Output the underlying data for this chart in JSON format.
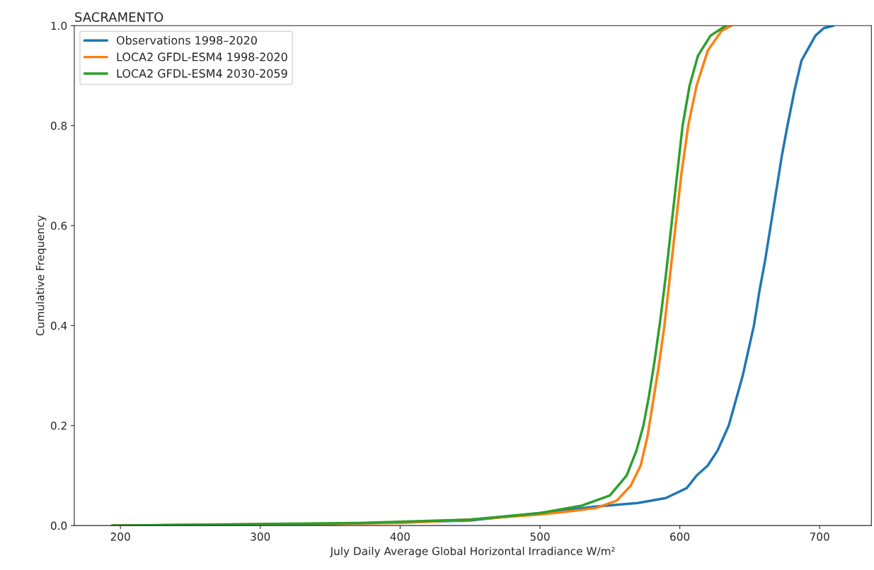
{
  "chart_data": {
    "type": "line",
    "title": "SACRAMENTO",
    "xlabel": "July Daily Average Global Horizontal Irradiance W/m²",
    "ylabel": "Cumulative Frequency",
    "xlim": [
      167,
      737
    ],
    "ylim": [
      0,
      1
    ],
    "xticks": [
      200,
      300,
      400,
      500,
      600,
      700
    ],
    "yticks": [
      {
        "value": 0,
        "label": "0.0"
      },
      0.2,
      0.4,
      0.6,
      0.8,
      {
        "value": 1,
        "label": "1.0"
      }
    ],
    "legend": "top left",
    "grid": false,
    "series": [
      {
        "name": "Observations 1998–2020",
        "color": "#1f77b4",
        "x": [
          194,
          350,
          450,
          500,
          540,
          570,
          590,
          605,
          612,
          620,
          627,
          635,
          640,
          645,
          649,
          653,
          657,
          661,
          665,
          669,
          673,
          677,
          682,
          687,
          691,
          697,
          703,
          710
        ],
        "values": [
          0,
          0.003,
          0.01,
          0.025,
          0.038,
          0.045,
          0.055,
          0.075,
          0.1,
          0.12,
          0.15,
          0.2,
          0.25,
          0.3,
          0.35,
          0.4,
          0.47,
          0.53,
          0.6,
          0.67,
          0.74,
          0.8,
          0.87,
          0.93,
          0.95,
          0.98,
          0.995,
          1.0
        ]
      },
      {
        "name": "LOCA2 GFDL-ESM4 1998-2020",
        "color": "#ff7f0e",
        "x": [
          194,
          400,
          450,
          500,
          520,
          540,
          555,
          565,
          572,
          577,
          581,
          585,
          589,
          593,
          597,
          601,
          606,
          612,
          620,
          630,
          637
        ],
        "values": [
          0,
          0.005,
          0.012,
          0.022,
          0.028,
          0.035,
          0.05,
          0.08,
          0.12,
          0.18,
          0.25,
          0.32,
          0.4,
          0.5,
          0.6,
          0.7,
          0.8,
          0.88,
          0.95,
          0.99,
          1.0
        ]
      },
      {
        "name": "LOCA2 GFDL-ESM4 2030-2059",
        "color": "#2ca02c",
        "x": [
          194,
          370,
          450,
          500,
          530,
          550,
          562,
          569,
          574,
          578,
          582,
          586,
          590,
          594,
          598,
          602,
          607,
          613,
          622,
          633
        ],
        "values": [
          0,
          0.005,
          0.012,
          0.025,
          0.04,
          0.06,
          0.1,
          0.15,
          0.2,
          0.26,
          0.33,
          0.41,
          0.5,
          0.6,
          0.7,
          0.8,
          0.88,
          0.94,
          0.98,
          1.0
        ]
      }
    ]
  }
}
